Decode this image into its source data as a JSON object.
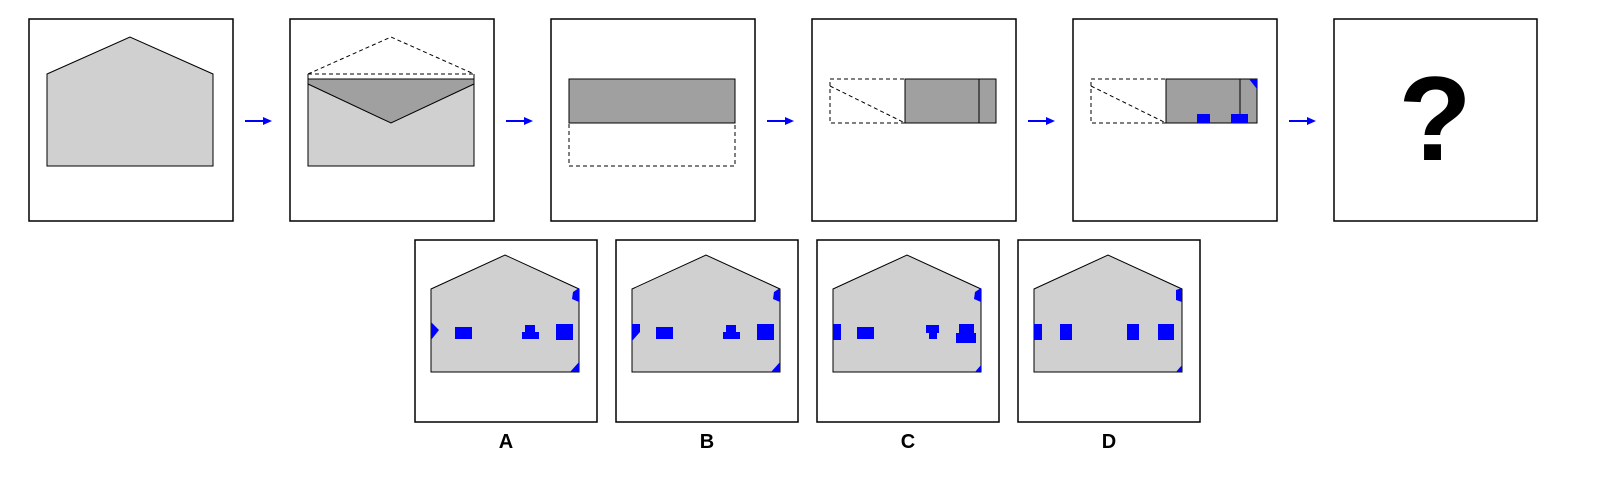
{
  "puzzle": {
    "question_mark": "?",
    "options": [
      {
        "label": "A"
      },
      {
        "label": "B"
      },
      {
        "label": "C"
      },
      {
        "label": "D"
      }
    ]
  },
  "colors": {
    "paper_light": "#d0d0d0",
    "paper_dark": "#a0a0a0",
    "hole": "#0000ff",
    "arrow": "#0000ff",
    "outline": "#000000"
  }
}
